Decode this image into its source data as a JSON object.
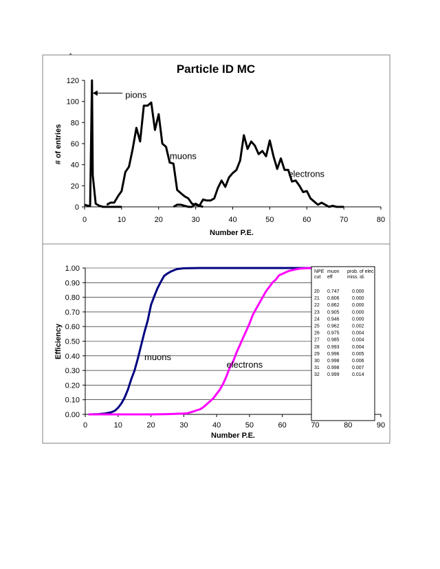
{
  "stray_mark": "^",
  "chart_data": [
    {
      "type": "line",
      "title": "Particle ID MC",
      "xlabel": "Number P.E.",
      "ylabel": "# of entries",
      "xlim": [
        0,
        80
      ],
      "ylim": [
        0,
        120
      ],
      "xticks": [
        "0",
        "10",
        "20",
        "30",
        "40",
        "50",
        "60",
        "70",
        "80"
      ],
      "yticks": [
        "0",
        "20",
        "40",
        "60",
        "80",
        "100",
        "120"
      ],
      "grid": false,
      "series": [
        {
          "name": "pions",
          "color": "#000000",
          "x": [
            0,
            1,
            1.5,
            2,
            2.2,
            3,
            4,
            5,
            6,
            8,
            10
          ],
          "y": [
            2,
            1,
            1,
            120,
            30,
            3,
            1,
            0,
            0,
            0,
            0
          ]
        },
        {
          "name": "muons",
          "color": "#000000",
          "x": [
            6,
            7,
            8,
            9,
            10,
            11,
            12,
            13,
            14,
            15,
            16,
            17,
            18,
            19,
            20,
            21,
            22,
            23,
            24,
            25,
            26,
            27,
            28,
            29,
            30,
            31,
            32
          ],
          "y": [
            2,
            4,
            4,
            10,
            15,
            33,
            38,
            55,
            75,
            62,
            96,
            96,
            99,
            73,
            88,
            60,
            57,
            42,
            41,
            16,
            13,
            10,
            8,
            3,
            2,
            1,
            0
          ]
        },
        {
          "name": "electrons",
          "color": "#000000",
          "x": [
            24,
            25,
            26,
            27,
            28,
            29,
            30,
            31,
            32,
            33,
            34,
            35,
            36,
            37,
            38,
            39,
            40,
            41,
            42,
            43,
            44,
            45,
            46,
            47,
            48,
            49,
            50,
            51,
            52,
            53,
            54,
            55,
            56,
            57,
            58,
            59,
            60,
            61,
            62,
            63,
            64,
            65,
            66,
            67,
            68,
            69,
            70
          ],
          "y": [
            0,
            2,
            2,
            1,
            0,
            0,
            3,
            1,
            7,
            6,
            6,
            8,
            18,
            25,
            19,
            28,
            32,
            35,
            44,
            68,
            55,
            62,
            58,
            50,
            53,
            48,
            63,
            48,
            36,
            46,
            35,
            35,
            24,
            25,
            20,
            14,
            15,
            8,
            5,
            2,
            4,
            2,
            0,
            1,
            0,
            0,
            0
          ]
        }
      ],
      "annotations": [
        {
          "text": "pions",
          "x": 11,
          "y": 106
        },
        {
          "text": "muons",
          "x": 23,
          "y": 48
        },
        {
          "text": "electrons",
          "x": 55,
          "y": 31
        }
      ]
    },
    {
      "type": "line",
      "xlabel": "Number P.E.",
      "ylabel": "Efficiency",
      "xlim": [
        0,
        90
      ],
      "ylim": [
        0,
        1.0
      ],
      "xticks": [
        "0",
        "10",
        "20",
        "30",
        "40",
        "50",
        "60",
        "70",
        "80",
        "90"
      ],
      "yticks": [
        "0.00",
        "0.10",
        "0.20",
        "0.30",
        "0.40",
        "0.50",
        "0.60",
        "0.70",
        "0.80",
        "0.90",
        "1.00"
      ],
      "grid": true,
      "series": [
        {
          "name": "muons",
          "color": "#000080",
          "x": [
            1,
            4,
            6,
            8,
            9,
            10,
            11,
            12,
            13,
            14,
            15,
            16,
            17,
            18,
            19,
            20,
            21,
            22,
            23,
            24,
            25,
            26,
            27,
            28,
            30,
            35,
            40,
            70
          ],
          "y": [
            0,
            0.002,
            0.006,
            0.015,
            0.025,
            0.045,
            0.075,
            0.115,
            0.17,
            0.24,
            0.3,
            0.38,
            0.47,
            0.56,
            0.64,
            0.747,
            0.806,
            0.862,
            0.905,
            0.946,
            0.962,
            0.975,
            0.985,
            0.993,
            0.998,
            1,
            1,
            1
          ]
        },
        {
          "name": "electrons",
          "color": "#ff00ff",
          "x": [
            1,
            10,
            20,
            25,
            28,
            30,
            31,
            32,
            33,
            34,
            35,
            36,
            37,
            38,
            39,
            40,
            41,
            42,
            43,
            44,
            45,
            46,
            47,
            48,
            49,
            50,
            51,
            52,
            53,
            54,
            55,
            56,
            57,
            58,
            59,
            60,
            61,
            62,
            63,
            64,
            65,
            66,
            67,
            68,
            70
          ],
          "y": [
            0,
            0,
            0,
            0.002,
            0.004,
            0.006,
            0.007,
            0.014,
            0.02,
            0.028,
            0.035,
            0.05,
            0.07,
            0.09,
            0.11,
            0.14,
            0.17,
            0.21,
            0.26,
            0.32,
            0.36,
            0.42,
            0.47,
            0.52,
            0.57,
            0.62,
            0.68,
            0.72,
            0.76,
            0.8,
            0.84,
            0.87,
            0.9,
            0.92,
            0.95,
            0.96,
            0.97,
            0.98,
            0.985,
            0.99,
            0.995,
            0.997,
            0.998,
            0.999,
            1
          ]
        }
      ],
      "annotations": [
        {
          "text": "muons",
          "x": 18,
          "y": 0.37
        },
        {
          "text": "electrons",
          "x": 43,
          "y": 0.32
        }
      ],
      "table": {
        "headers": [
          [
            "NPE",
            "cut"
          ],
          [
            "muon",
            "eff"
          ],
          [
            "prob. of elec",
            "miss. id."
          ]
        ],
        "rows": [
          [
            "20",
            "0.747",
            "0.000"
          ],
          [
            "21",
            "0.806",
            "0.000"
          ],
          [
            "22",
            "0.862",
            "0.000"
          ],
          [
            "23",
            "0.905",
            "0.000"
          ],
          [
            "24",
            "0.946",
            "0.000"
          ],
          [
            "25",
            "0.962",
            "0.002"
          ],
          [
            "26",
            "0.975",
            "0.004"
          ],
          [
            "27",
            "0.985",
            "0.004"
          ],
          [
            "28",
            "0.993",
            "0.004"
          ],
          [
            "29",
            "0.996",
            "0.005"
          ],
          [
            "30",
            "0.998",
            "0.006"
          ],
          [
            "31",
            "0.998",
            "0.007"
          ],
          [
            "32",
            "0.999",
            "0.014"
          ]
        ]
      }
    }
  ]
}
